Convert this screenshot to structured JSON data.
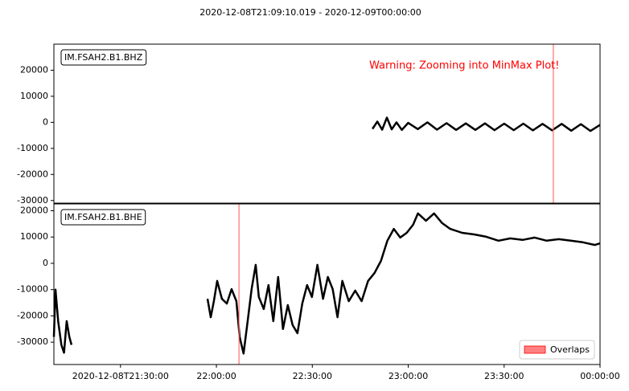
{
  "chart_data": [
    {
      "type": "line",
      "title": "2020-12-08T21:09:10.019  -  2020-12-09T00:00:00",
      "label": "IM.FSAH2.B1.BHZ",
      "annotation": "Warning: Zooming into MinMax Plot!",
      "annotation_color": "#ff0000",
      "color": "#000000",
      "xlim": [
        "2020-12-08T21:09:10.019",
        "2020-12-09T00:00:00"
      ],
      "ylim": [
        -31000,
        30000
      ],
      "yticks": [
        -30000,
        -20000,
        -10000,
        0,
        10000,
        20000
      ],
      "overlaps": [
        "2020-12-08T23:45:23"
      ],
      "overlap_color": "#ff7070",
      "x": [
        "2020-12-08T22:48:50",
        "2020-12-08T22:50:20",
        "2020-12-08T22:51:50",
        "2020-12-08T22:53:20",
        "2020-12-08T22:54:50",
        "2020-12-08T22:56:20",
        "2020-12-08T22:58:00",
        "2020-12-08T23:00:00",
        "2020-12-08T23:03:00",
        "2020-12-08T23:06:00",
        "2020-12-08T23:09:00",
        "2020-12-08T23:12:00",
        "2020-12-08T23:15:00",
        "2020-12-08T23:18:00",
        "2020-12-08T23:21:00",
        "2020-12-08T23:24:00",
        "2020-12-08T23:27:00",
        "2020-12-08T23:30:00",
        "2020-12-08T23:33:00",
        "2020-12-08T23:36:00",
        "2020-12-08T23:39:00",
        "2020-12-08T23:42:00",
        "2020-12-08T23:45:00",
        "2020-12-08T23:48:00",
        "2020-12-08T23:51:00",
        "2020-12-08T23:54:00",
        "2020-12-08T23:57:00",
        "2020-12-09T00:00:00"
      ],
      "values": [
        -2500,
        300,
        -2800,
        1800,
        -2700,
        0,
        -2900,
        -200,
        -2600,
        0,
        -2800,
        -300,
        -2900,
        -400,
        -2900,
        -400,
        -3000,
        -500,
        -3000,
        -500,
        -3100,
        -600,
        -3100,
        -600,
        -3200,
        -700,
        -3300,
        -1000
      ]
    },
    {
      "type": "line",
      "label": "IM.FSAH2.B1.BHE",
      "color": "#000000",
      "xlim": [
        "2020-12-08T21:09:10.019",
        "2020-12-09T00:00:00"
      ],
      "ylim": [
        -38500,
        22600
      ],
      "yticks": [
        -30000,
        -20000,
        -10000,
        0,
        10000,
        20000
      ],
      "xticks": [
        "2020-12-08T21:30:00",
        {
          "value": "2020-12-08T22:00:00",
          "label": "22:00:00"
        },
        {
          "value": "2020-12-08T22:30:00",
          "label": "22:30:00"
        },
        {
          "value": "2020-12-08T23:00:00",
          "label": "23:00:00"
        },
        {
          "value": "2020-12-08T23:30:00",
          "label": "23:30:00"
        },
        {
          "value": "2020-12-09T00:00:00",
          "label": "00:00:00"
        }
      ],
      "overlaps": [
        "2020-12-08T22:07:04"
      ],
      "overlap_color": "#ff7070",
      "legend": {
        "label": "Overlaps",
        "loc": "lower right"
      },
      "x": [
        "2020-12-08T21:09:10",
        "2020-12-08T21:09:40",
        "2020-12-08T21:10:30",
        "2020-12-08T21:11:30",
        "2020-12-08T21:12:20",
        "2020-12-08T21:13:10",
        "2020-12-08T21:14:00",
        "2020-12-08T21:14:40",
        "2020-12-08T21:30:00",
        "2020-12-08T21:57:13",
        "2020-12-08T21:58:13",
        "2020-12-08T21:59:13",
        "2020-12-08T22:00:14",
        "2020-12-08T22:01:44",
        "2020-12-08T22:03:15",
        "2020-12-08T22:04:45",
        "2020-12-08T22:06:15",
        "2020-12-08T22:07:15",
        "2020-12-08T22:08:30",
        "2020-12-08T22:09:46",
        "2020-12-08T22:11:01",
        "2020-12-08T22:12:17",
        "2020-12-08T22:13:17",
        "2020-12-08T22:14:48",
        "2020-12-08T22:16:18",
        "2020-12-08T22:17:48",
        "2020-12-08T22:19:19",
        "2020-12-08T22:20:49",
        "2020-12-08T22:22:20",
        "2020-12-08T22:23:50",
        "2020-12-08T22:25:21",
        "2020-12-08T22:26:51",
        "2020-12-08T22:28:22",
        "2020-12-08T22:29:52",
        "2020-12-08T22:31:35",
        "2020-12-08T22:33:21",
        "2020-12-08T22:34:52",
        "2020-12-08T22:36:22",
        "2020-12-08T22:37:53",
        "2020-12-08T22:39:23",
        "2020-12-08T22:41:24",
        "2020-12-08T22:43:25",
        "2020-12-08T22:45:25",
        "2020-12-08T22:47:26",
        "2020-12-08T22:49:27",
        "2020-12-08T22:51:28",
        "2020-12-08T22:53:29",
        "2020-12-08T22:55:30",
        "2020-12-08T22:57:30",
        "2020-12-08T22:59:31",
        "2020-12-08T23:01:32",
        "2020-12-08T23:03:03",
        "2020-12-08T23:05:34",
        "2020-12-08T23:08:05",
        "2020-12-08T23:10:36",
        "2020-12-08T23:13:07",
        "2020-12-08T23:16:53",
        "2020-12-08T23:20:40",
        "2020-12-08T23:24:26",
        "2020-12-08T23:28:13",
        "2020-12-08T23:31:59",
        "2020-12-08T23:35:46",
        "2020-12-08T23:39:32",
        "2020-12-08T23:43:18",
        "2020-12-08T23:47:05",
        "2020-12-08T23:50:51",
        "2020-12-08T23:54:38",
        "2020-12-08T23:58:24",
        "2020-12-09T00:00:00"
      ],
      "values": [
        -28000,
        -10000,
        -22000,
        -31000,
        -34000,
        -22000,
        -28000,
        -31000,
        null,
        -13500,
        -20500,
        -14400,
        -6700,
        -13500,
        -15300,
        -9800,
        -14400,
        -28000,
        -34300,
        -22000,
        -9800,
        -600,
        -12800,
        -17400,
        -8300,
        -22000,
        -5200,
        -25000,
        -15900,
        -23500,
        -26600,
        -15300,
        -8300,
        -12800,
        -600,
        -13500,
        -5200,
        -9800,
        -20500,
        -6700,
        -14400,
        -10400,
        -14400,
        -6700,
        -3700,
        900,
        8600,
        13100,
        9800,
        11600,
        14700,
        19000,
        16200,
        19000,
        15300,
        13100,
        11600,
        11000,
        10100,
        8600,
        9500,
        8900,
        9800,
        8600,
        9200,
        8600,
        8000,
        7000,
        7600
      ]
    }
  ]
}
